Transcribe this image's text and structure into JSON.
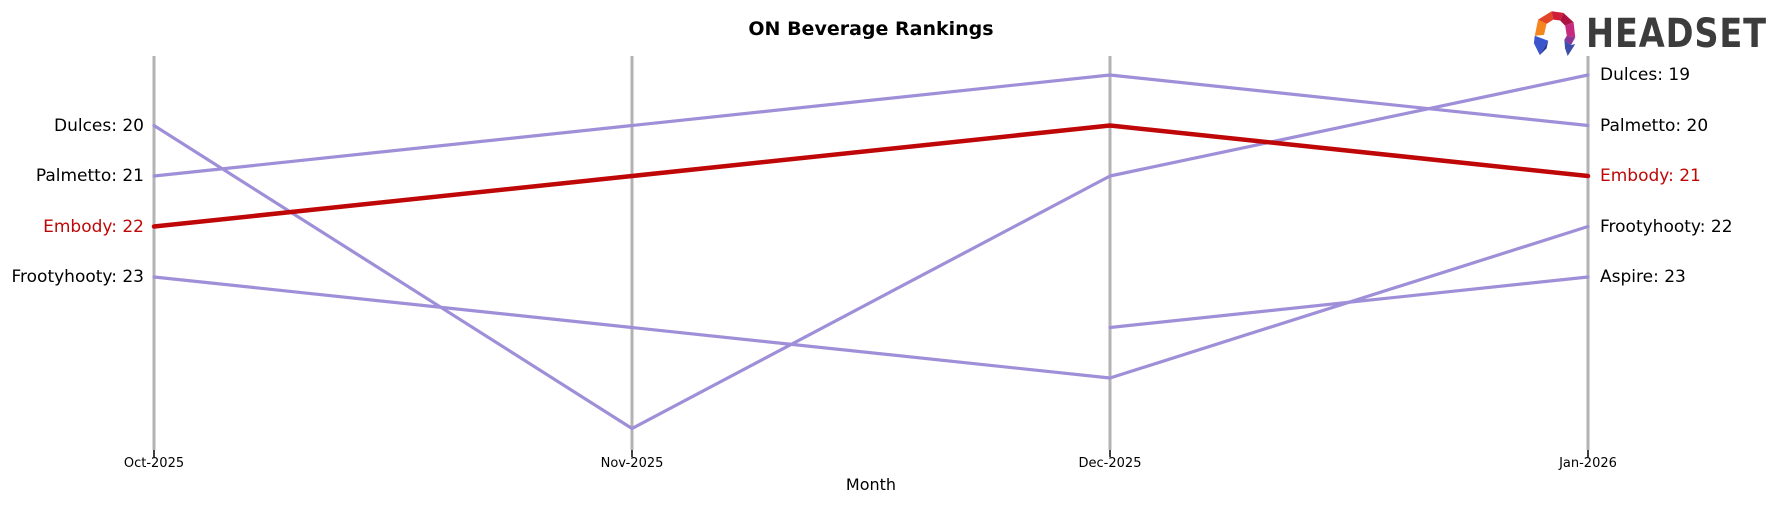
{
  "header": {
    "logo": {
      "text": "HEADSET"
    }
  },
  "chart_data": {
    "type": "line",
    "subtype": "bump-chart-ranking",
    "title": "ON Beverage Rankings",
    "xlabel": "Month",
    "x_ticklabels": [
      "Oct-2025",
      "Nov-2025",
      "Dec-2025",
      "Jan-2026"
    ],
    "y_axis": {
      "kind": "rank",
      "best_visible": 19,
      "worst_visible": 26,
      "inverted": true,
      "gridlines": false
    },
    "series": [
      {
        "name": "Dulces",
        "color": "#9f8fd8",
        "highlighted": false,
        "values": [
          20,
          26,
          21,
          19
        ]
      },
      {
        "name": "Palmetto",
        "color": "#9f8fd8",
        "highlighted": false,
        "values": [
          21,
          20,
          19,
          20
        ]
      },
      {
        "name": "Embody",
        "color": "#bf0707",
        "highlighted": true,
        "values": [
          22,
          21,
          20,
          21
        ]
      },
      {
        "name": "Frootyhooty",
        "color": "#9f8fd8",
        "highlighted": false,
        "values": [
          23,
          24,
          25,
          22
        ]
      },
      {
        "name": "Aspire",
        "color": "#9f8fd8",
        "highlighted": false,
        "values": [
          null,
          null,
          24,
          23
        ]
      }
    ],
    "left_labels": [
      {
        "text": "Dulces: 20",
        "rank": 20,
        "color": "#000000"
      },
      {
        "text": "Palmetto: 21",
        "rank": 21,
        "color": "#000000"
      },
      {
        "text": "Embody: 22",
        "rank": 22,
        "color": "#bf0707"
      },
      {
        "text": "Frootyhooty: 23",
        "rank": 23,
        "color": "#000000"
      }
    ],
    "right_labels": [
      {
        "text": "Dulces: 19",
        "rank": 19,
        "color": "#000000"
      },
      {
        "text": "Palmetto: 20",
        "rank": 20,
        "color": "#000000"
      },
      {
        "text": "Embody: 21",
        "rank": 21,
        "color": "#bf0707"
      },
      {
        "text": "Frootyhooty: 22",
        "rank": 22,
        "color": "#000000"
      },
      {
        "text": "Aspire: 23",
        "rank": 23,
        "color": "#000000"
      }
    ],
    "colors": {
      "highlight_red": "#bf0707",
      "line_purple": "#9f8fd8",
      "axis_gray": "#b3b3b3"
    }
  }
}
